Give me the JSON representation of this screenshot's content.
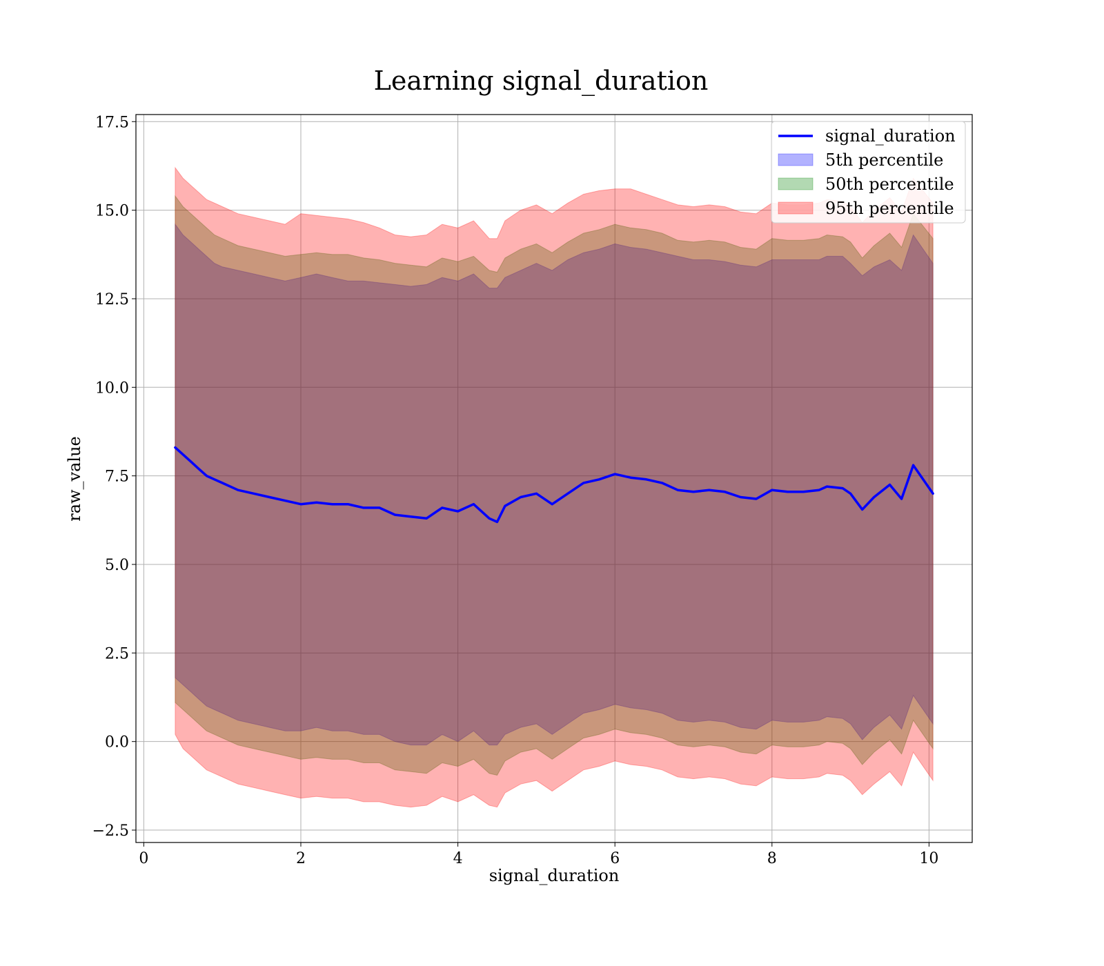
{
  "chart_data": {
    "type": "area",
    "title": "Learning signal_duration",
    "xlabel": "signal_duration",
    "ylabel": "raw_value",
    "xlim": [
      -0.1,
      10.55
    ],
    "ylim": [
      -2.85,
      17.7
    ],
    "x_ticks": [
      0,
      2,
      4,
      6,
      8,
      10
    ],
    "y_ticks": [
      -2.5,
      0.0,
      2.5,
      5.0,
      7.5,
      10.0,
      12.5,
      15.0,
      17.5
    ],
    "x_tick_labels": [
      "0",
      "2",
      "4",
      "6",
      "8",
      "10"
    ],
    "y_tick_labels": [
      "−2.5",
      "0.0",
      "2.5",
      "5.0",
      "7.5",
      "10.0",
      "12.5",
      "15.0",
      "17.5"
    ],
    "grid": true,
    "legend_position": "top-right",
    "x": [
      0.4,
      0.5,
      0.6,
      0.7,
      0.8,
      0.9,
      1.0,
      1.2,
      1.4,
      1.6,
      1.8,
      2.0,
      2.2,
      2.4,
      2.6,
      2.8,
      3.0,
      3.2,
      3.4,
      3.6,
      3.8,
      4.0,
      4.2,
      4.4,
      4.5,
      4.6,
      4.8,
      5.0,
      5.2,
      5.4,
      5.6,
      5.8,
      6.0,
      6.2,
      6.4,
      6.6,
      6.8,
      7.0,
      7.2,
      7.4,
      7.6,
      7.8,
      8.0,
      8.2,
      8.4,
      8.6,
      8.7,
      8.9,
      9.0,
      9.15,
      9.3,
      9.5,
      9.65,
      9.8,
      10.05
    ],
    "series": [
      {
        "name": "signal_duration",
        "kind": "line",
        "color": "#0000ff",
        "values": [
          8.3,
          8.1,
          7.9,
          7.7,
          7.5,
          7.4,
          7.3,
          7.1,
          7.0,
          6.9,
          6.8,
          6.7,
          6.75,
          6.7,
          6.7,
          6.6,
          6.6,
          6.4,
          6.35,
          6.3,
          6.6,
          6.5,
          6.7,
          6.3,
          6.2,
          6.65,
          6.9,
          7.0,
          6.7,
          7.0,
          7.3,
          7.4,
          7.55,
          7.45,
          7.4,
          7.3,
          7.1,
          7.05,
          7.1,
          7.05,
          6.9,
          6.85,
          7.1,
          7.05,
          7.05,
          7.1,
          7.2,
          7.15,
          7.0,
          6.55,
          6.9,
          7.25,
          6.85,
          7.8,
          7.0
        ]
      },
      {
        "name": "5th percentile",
        "kind": "band",
        "color": "#0000ff",
        "opacity": 0.3,
        "upper": [
          14.6,
          14.3,
          14.1,
          13.9,
          13.7,
          13.5,
          13.4,
          13.3,
          13.2,
          13.1,
          13.0,
          13.1,
          13.2,
          13.1,
          13.0,
          13.0,
          12.95,
          12.9,
          12.85,
          12.9,
          13.1,
          13.0,
          13.2,
          12.8,
          12.8,
          13.1,
          13.3,
          13.5,
          13.3,
          13.6,
          13.8,
          13.9,
          14.05,
          13.95,
          13.9,
          13.8,
          13.7,
          13.6,
          13.6,
          13.55,
          13.45,
          13.4,
          13.6,
          13.6,
          13.6,
          13.6,
          13.7,
          13.7,
          13.5,
          13.15,
          13.4,
          13.6,
          13.3,
          14.3,
          13.5
        ],
        "lower": [
          1.8,
          1.6,
          1.4,
          1.2,
          1.0,
          0.9,
          0.8,
          0.6,
          0.5,
          0.4,
          0.3,
          0.3,
          0.4,
          0.3,
          0.3,
          0.2,
          0.2,
          0.0,
          -0.1,
          -0.1,
          0.2,
          0.0,
          0.3,
          -0.1,
          -0.1,
          0.2,
          0.4,
          0.5,
          0.2,
          0.5,
          0.8,
          0.9,
          1.05,
          0.95,
          0.9,
          0.8,
          0.6,
          0.55,
          0.6,
          0.55,
          0.4,
          0.35,
          0.6,
          0.55,
          0.55,
          0.6,
          0.7,
          0.65,
          0.5,
          0.05,
          0.4,
          0.75,
          0.35,
          1.3,
          0.5
        ]
      },
      {
        "name": "50th percentile",
        "kind": "band",
        "color": "#008000",
        "opacity": 0.3,
        "upper": [
          15.4,
          15.1,
          14.9,
          14.7,
          14.5,
          14.3,
          14.2,
          14.0,
          13.9,
          13.8,
          13.7,
          13.75,
          13.8,
          13.75,
          13.75,
          13.65,
          13.6,
          13.5,
          13.45,
          13.4,
          13.65,
          13.55,
          13.7,
          13.3,
          13.25,
          13.65,
          13.9,
          14.05,
          13.8,
          14.1,
          14.35,
          14.45,
          14.6,
          14.5,
          14.45,
          14.35,
          14.15,
          14.1,
          14.15,
          14.1,
          13.95,
          13.9,
          14.2,
          14.15,
          14.15,
          14.2,
          14.3,
          14.25,
          14.1,
          13.65,
          14.0,
          14.35,
          13.95,
          14.9,
          14.2
        ],
        "lower": [
          1.1,
          0.9,
          0.7,
          0.5,
          0.3,
          0.2,
          0.1,
          -0.1,
          -0.2,
          -0.3,
          -0.4,
          -0.5,
          -0.45,
          -0.5,
          -0.5,
          -0.6,
          -0.6,
          -0.8,
          -0.85,
          -0.9,
          -0.6,
          -0.7,
          -0.5,
          -0.9,
          -0.95,
          -0.55,
          -0.3,
          -0.2,
          -0.5,
          -0.2,
          0.1,
          0.2,
          0.35,
          0.25,
          0.2,
          0.1,
          -0.1,
          -0.15,
          -0.1,
          -0.15,
          -0.3,
          -0.35,
          -0.1,
          -0.15,
          -0.15,
          -0.1,
          0.0,
          -0.05,
          -0.2,
          -0.65,
          -0.3,
          0.05,
          -0.35,
          0.6,
          -0.2
        ]
      },
      {
        "name": "95th percentile",
        "kind": "band",
        "color": "#ff0000",
        "opacity": 0.3,
        "upper": [
          16.2,
          15.9,
          15.7,
          15.5,
          15.3,
          15.2,
          15.1,
          14.9,
          14.8,
          14.7,
          14.6,
          14.9,
          14.85,
          14.8,
          14.75,
          14.65,
          14.5,
          14.3,
          14.25,
          14.3,
          14.6,
          14.5,
          14.7,
          14.2,
          14.2,
          14.7,
          15.0,
          15.15,
          14.9,
          15.2,
          15.45,
          15.55,
          15.6,
          15.6,
          15.45,
          15.3,
          15.15,
          15.1,
          15.15,
          15.1,
          14.95,
          14.9,
          15.2,
          15.15,
          15.15,
          15.2,
          15.3,
          15.25,
          15.1,
          14.65,
          15.0,
          15.35,
          14.95,
          15.9,
          15.2
        ],
        "lower": [
          0.2,
          -0.2,
          -0.4,
          -0.6,
          -0.8,
          -0.9,
          -1.0,
          -1.2,
          -1.3,
          -1.4,
          -1.5,
          -1.6,
          -1.55,
          -1.6,
          -1.6,
          -1.7,
          -1.7,
          -1.8,
          -1.85,
          -1.8,
          -1.55,
          -1.7,
          -1.5,
          -1.8,
          -1.85,
          -1.45,
          -1.2,
          -1.1,
          -1.4,
          -1.1,
          -0.8,
          -0.7,
          -0.55,
          -0.65,
          -0.7,
          -0.8,
          -1.0,
          -1.05,
          -1.0,
          -1.05,
          -1.2,
          -1.25,
          -1.0,
          -1.05,
          -1.05,
          -1.0,
          -0.9,
          -0.95,
          -1.1,
          -1.5,
          -1.2,
          -0.85,
          -1.25,
          -0.3,
          -1.1
        ]
      }
    ]
  }
}
